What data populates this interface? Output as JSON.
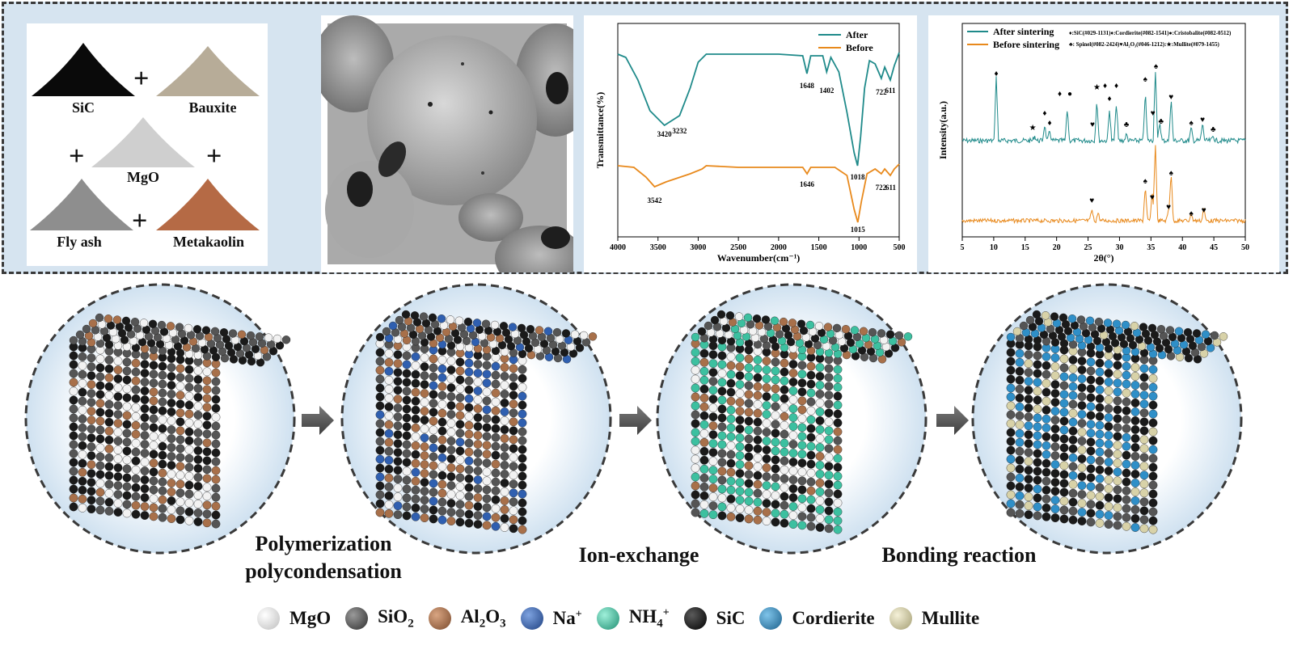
{
  "raw_materials": {
    "sic": "SiC",
    "bauxite": "Bauxite",
    "mgo": "MgO",
    "fly_ash": "Fly ash",
    "metakaolin": "Metakaolin",
    "plus": "+"
  },
  "ftir": {
    "xlabel": "Wavenumber(cm⁻¹)",
    "ylabel": "Transmittance(%)",
    "legend_after": "After",
    "legend_before": "Before",
    "ticks_x": [
      "4000",
      "3500",
      "3000",
      "2500",
      "2000",
      "1500",
      "1000",
      "500"
    ],
    "peaks_after": [
      "3420",
      "3232",
      "1648",
      "1402",
      "1018",
      "722",
      "611"
    ],
    "peaks_before": [
      "3542",
      "1646",
      "1015",
      "722",
      "611"
    ],
    "colors": {
      "after": "#1f8a8a",
      "before": "#e8891c"
    }
  },
  "xrd": {
    "xlabel": "2θ(°)",
    "ylabel": "Intensity(a.u.)",
    "legend_after": "After sintering",
    "legend_before": "Before sintering",
    "phase_key_1": "♦:SiC(#029-1131)♦:Cordierite(#082-1541)●:Cristobalite(#082-0512)",
    "phase_key_2": "♣: Spinel(#082-2424)♥Al₂O₃(#046-1212):★:Mullite(#079-1455)",
    "ticks_x": [
      "5",
      "10",
      "15",
      "20",
      "25",
      "30",
      "35",
      "40",
      "45",
      "50"
    ]
  },
  "steps": {
    "polymerization": "Polymerization",
    "polycondensation": "polycondensation",
    "ion_exchange": "Ion-exchange",
    "bonding": "Bonding reaction"
  },
  "legend": {
    "mgo": "MgO",
    "sio2_main": "SiO",
    "sio2_sub": "2",
    "al2o3_a": "Al",
    "al2o3_sub1": "2",
    "al2o3_b": "O",
    "al2o3_sub2": "3",
    "na_main": "Na",
    "na_sup": "+",
    "nh4_main": "NH",
    "nh4_sub": "4",
    "nh4_sup": "+",
    "sic": "SiC",
    "cordierite": "Cordierite",
    "mullite": "Mullite"
  },
  "colors": {
    "mgo": "#f2f2f2",
    "sio2": "#555555",
    "al2o3": "#a8704a",
    "na": "#2f5fb0",
    "nh4": "#3cc0a0",
    "sic": "#1a1a1a",
    "cordierite": "#2f8fc8",
    "mullite": "#d8d2a8"
  }
}
